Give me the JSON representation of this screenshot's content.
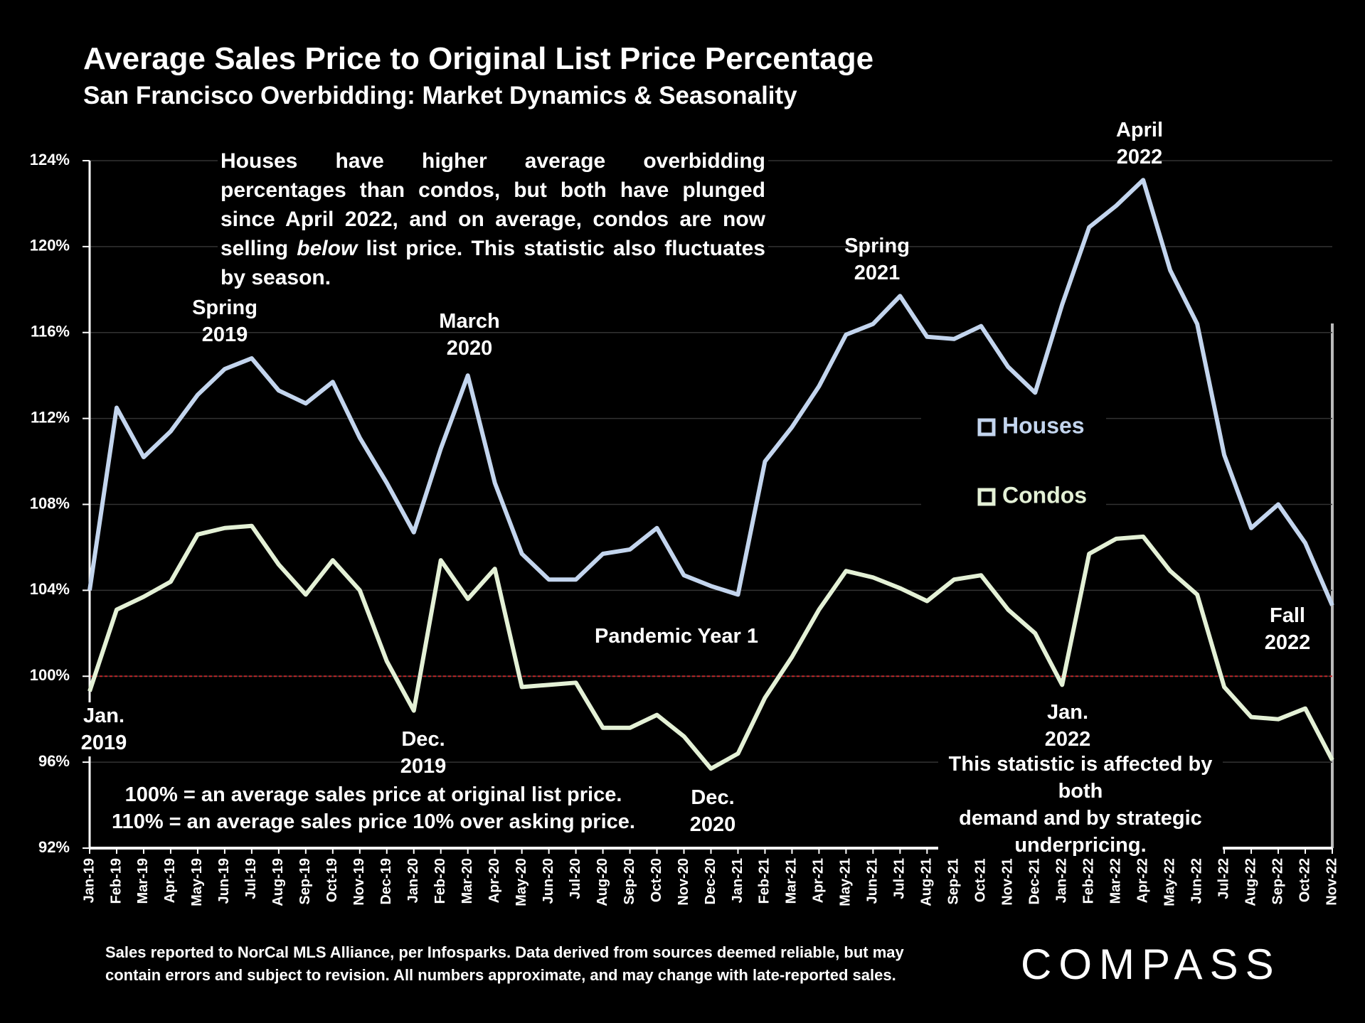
{
  "chart_data": {
    "type": "line",
    "title": "Average Sales Price to Original List Price Percentage",
    "subtitle": "San Francisco Overbidding: Market Dynamics & Seasonality",
    "categories": [
      "Jan-19",
      "Feb-19",
      "Mar-19",
      "Apr-19",
      "May-19",
      "Jun-19",
      "Jul-19",
      "Aug-19",
      "Sep-19",
      "Oct-19",
      "Nov-19",
      "Dec-19",
      "Jan-20",
      "Feb-20",
      "Mar-20",
      "Apr-20",
      "May-20",
      "Jun-20",
      "Jul-20",
      "Aug-20",
      "Sep-20",
      "Oct-20",
      "Nov-20",
      "Dec-20",
      "Jan-21",
      "Feb-21",
      "Mar-21",
      "Apr-21",
      "May-21",
      "Jun-21",
      "Jul-21",
      "Aug-21",
      "Sep-21",
      "Oct-21",
      "Nov-21",
      "Dec-21",
      "Jan-22",
      "Feb-22",
      "Mar-22",
      "Apr-22",
      "May-22",
      "Jun-22",
      "Jul-22",
      "Aug-22",
      "Sep-22",
      "Oct-22",
      "Nov-22"
    ],
    "series": [
      {
        "name": "Houses",
        "color": "#c3d5ee",
        "values": [
          104.0,
          112.5,
          110.2,
          111.4,
          113.1,
          114.3,
          114.8,
          113.3,
          112.7,
          113.7,
          111.1,
          109.0,
          106.7,
          110.6,
          114.0,
          109.0,
          105.7,
          104.5,
          104.5,
          105.7,
          105.9,
          106.9,
          104.7,
          104.2,
          103.8,
          110.0,
          111.6,
          113.5,
          115.9,
          116.4,
          117.7,
          115.8,
          115.7,
          116.3,
          114.4,
          113.2,
          117.3,
          120.9,
          121.9,
          123.1,
          118.9,
          116.4,
          110.3,
          106.9,
          108.0,
          106.2,
          103.3
        ]
      },
      {
        "name": "Condos",
        "color": "#e4f1d6",
        "values": [
          99.3,
          103.1,
          103.7,
          104.4,
          106.6,
          106.9,
          107.0,
          105.2,
          103.8,
          105.4,
          104.0,
          100.7,
          98.4,
          105.4,
          103.6,
          105.0,
          99.5,
          99.6,
          99.7,
          97.6,
          97.6,
          98.2,
          97.2,
          95.7,
          96.4,
          99.0,
          100.9,
          103.1,
          104.9,
          104.6,
          104.1,
          103.5,
          104.5,
          104.7,
          103.1,
          102.0,
          99.6,
          105.7,
          106.4,
          106.5,
          104.9,
          103.8,
          99.5,
          98.1,
          98.0,
          98.5,
          96.1
        ]
      }
    ],
    "ylim": [
      92,
      124
    ],
    "yticks": [
      {
        "value": 92,
        "label": "92%"
      },
      {
        "value": 96,
        "label": "96%"
      },
      {
        "value": 100,
        "label": "100%"
      },
      {
        "value": 104,
        "label": "104%"
      },
      {
        "value": 108,
        "label": "108%"
      },
      {
        "value": 112,
        "label": "112%"
      },
      {
        "value": 116,
        "label": "116%"
      },
      {
        "value": 120,
        "label": "120%"
      },
      {
        "value": 124,
        "label": "124%"
      }
    ],
    "grid": true,
    "reference_line": 100,
    "note": [
      "Houses have higher average overbidding percentages than condos, but both have plunged since April 2022, and on average, condos are now selling ",
      "below",
      " list price. This statistic also fluctuates by season."
    ],
    "annotations": [
      "Spring\n2019",
      "March\n2020",
      "Spring\n2021",
      "April\n2022",
      "Jan.\n2019",
      "Dec.\n2019",
      "Pandemic Year 1",
      "Dec.\n2020",
      "Jan.\n2022",
      "Fall\n2022",
      "100% = an average sales price at original list price.\n110% = an average sales price 10% over asking price.",
      "This statistic is affected by both\ndemand and by strategic underpricing."
    ],
    "source": "Sales reported to NorCal MLS Alliance, per Infosparks. Data derived from sources deemed reliable, but may\ncontain errors and subject to revision. All numbers approximate, and may change with late-reported sales.",
    "brand": "COMPASS"
  }
}
